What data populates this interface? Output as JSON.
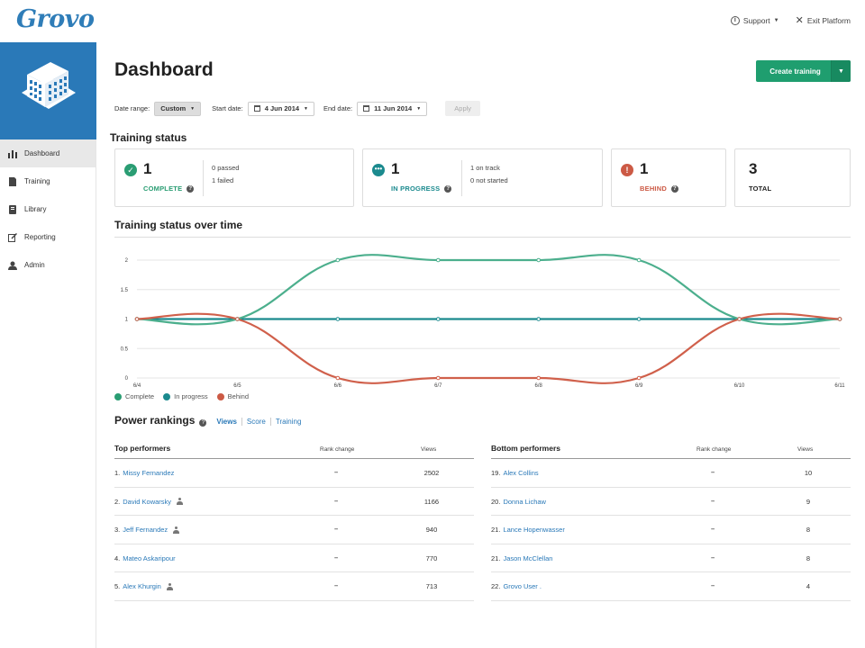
{
  "header": {
    "logo": "Grovo",
    "support_label": "Support",
    "exit_label": "Exit Platform"
  },
  "sidebar": {
    "items": [
      {
        "label": "Dashboard",
        "icon": "bar-chart-icon",
        "active": true
      },
      {
        "label": "Training",
        "icon": "document-icon",
        "active": false
      },
      {
        "label": "Library",
        "icon": "book-icon",
        "active": false
      },
      {
        "label": "Reporting",
        "icon": "edit-icon",
        "active": false
      },
      {
        "label": "Admin",
        "icon": "person-icon",
        "active": false
      }
    ]
  },
  "main": {
    "title": "Dashboard",
    "create_button": "Create training",
    "filters": {
      "date_range_label": "Date range:",
      "date_range_value": "Custom",
      "start_label": "Start date:",
      "start_value": "4 Jun 2014",
      "end_label": "End date:",
      "end_value": "11 Jun 2014",
      "apply_label": "Apply"
    }
  },
  "training_status": {
    "title": "Training status",
    "complete": {
      "count": "1",
      "label": "COMPLETE",
      "detail1": "0 passed",
      "detail2": "1 failed",
      "color": "#2a9d73"
    },
    "in_progress": {
      "count": "1",
      "label": "IN PROGRESS",
      "detail1": "1 on track",
      "detail2": "0 not started",
      "color": "#1b8a8e"
    },
    "behind": {
      "count": "1",
      "label": "BEHIND",
      "color": "#cc5a45"
    },
    "total": {
      "count": "3",
      "label": "TOTAL"
    }
  },
  "chart_title": "Training status over time",
  "chart_data": {
    "type": "line",
    "x": [
      "6/4",
      "6/5",
      "6/6",
      "6/7",
      "6/8",
      "6/9",
      "6/10",
      "6/11"
    ],
    "y_ticks": [
      "0",
      "0.5",
      "1",
      "1.5",
      "2"
    ],
    "ylim": [
      0,
      2
    ],
    "grid": true,
    "series": [
      {
        "name": "Complete",
        "color": "#4caf8d",
        "values": [
          1,
          1,
          2,
          2,
          2,
          2,
          1,
          1
        ]
      },
      {
        "name": "In progress",
        "color": "#1b8a8e",
        "values": [
          1,
          1,
          1,
          1,
          1,
          1,
          1,
          1
        ]
      },
      {
        "name": "Behind",
        "color": "#d0604b",
        "values": [
          1,
          1,
          0,
          0,
          0,
          0,
          1,
          1
        ]
      }
    ]
  },
  "legend": {
    "complete": "Complete",
    "in_progress": "In progress",
    "behind": "Behind"
  },
  "power_rankings": {
    "title": "Power rankings",
    "tabs": [
      "Views",
      "Score",
      "Training"
    ],
    "top": {
      "title": "Top performers",
      "col_rank": "Rank change",
      "col_views": "Views",
      "rows": [
        {
          "pos": "1.",
          "name": "Missy Fernandez",
          "person": false,
          "rank": "–",
          "views": "2502"
        },
        {
          "pos": "2.",
          "name": "David Kowarsky",
          "person": true,
          "rank": "–",
          "views": "1166"
        },
        {
          "pos": "3.",
          "name": "Jeff Fernandez",
          "person": true,
          "rank": "–",
          "views": "940"
        },
        {
          "pos": "4.",
          "name": "Mateo Askaripour",
          "person": false,
          "rank": "–",
          "views": "770"
        },
        {
          "pos": "5.",
          "name": "Alex Khurgin",
          "person": true,
          "rank": "–",
          "views": "713"
        }
      ]
    },
    "bottom": {
      "title": "Bottom performers",
      "col_rank": "Rank change",
      "col_views": "Views",
      "rows": [
        {
          "pos": "19.",
          "name": "Alex Collins",
          "person": false,
          "rank": "–",
          "views": "10"
        },
        {
          "pos": "20.",
          "name": "Donna Lichaw",
          "person": false,
          "rank": "–",
          "views": "9"
        },
        {
          "pos": "21.",
          "name": "Lance Hopenwasser",
          "person": false,
          "rank": "–",
          "views": "8"
        },
        {
          "pos": "21.",
          "name": "Jason McClellan",
          "person": false,
          "rank": "–",
          "views": "8"
        },
        {
          "pos": "22.",
          "name": "Grovo User .",
          "person": false,
          "rank": "–",
          "views": "4"
        }
      ]
    }
  }
}
